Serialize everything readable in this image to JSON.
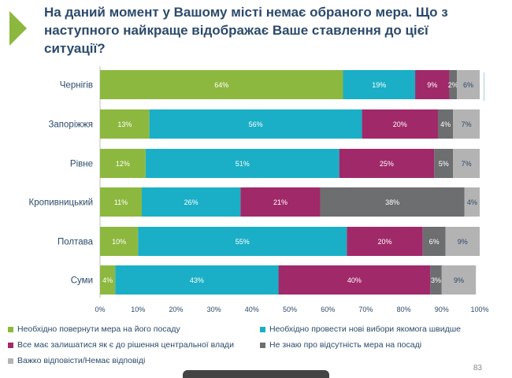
{
  "title": "На даний момент у Вашому місті немає обраного мера. Що з\nнаступного найкраще відображає Ваше ставлення до цієї\nситуації?",
  "page_number": "83",
  "colors": {
    "title": "#2c4a6b",
    "accent": "#8db83f"
  },
  "chart_data": {
    "type": "bar",
    "orientation": "horizontal",
    "stacked": true,
    "categories": [
      "Чернігів",
      "Запоріжжя",
      "Рівне",
      "Кропивницький",
      "Полтава",
      "Суми"
    ],
    "series": [
      {
        "name": "Необхідно повернути мера на його посаду",
        "color": "#8db83f",
        "values": [
          64,
          13,
          12,
          11,
          10,
          4
        ]
      },
      {
        "name": "Необхідно провести нові вибори якомога швидше",
        "color": "#1aafc6",
        "values": [
          19,
          56,
          51,
          26,
          55,
          43
        ]
      },
      {
        "name": "Все має залишатися як є до рішення центральної влади",
        "color": "#a0296a",
        "values": [
          9,
          20,
          25,
          21,
          20,
          40
        ]
      },
      {
        "name": "Не знаю про відсутність мера на посаді",
        "color": "#6d6e70",
        "values": [
          2,
          4,
          5,
          38,
          6,
          3
        ]
      },
      {
        "name": "Важко відповісти/Немає відповіді",
        "color": "#b3b3b3",
        "values": [
          6,
          7,
          7,
          4,
          9,
          9
        ]
      }
    ],
    "xlim": [
      0,
      100
    ],
    "x_ticks": [
      "0%",
      "10%",
      "20%",
      "30%",
      "40%",
      "50%",
      "60%",
      "70%",
      "80%",
      "90%",
      "100%"
    ],
    "legend_position": "bottom",
    "grid": false
  }
}
